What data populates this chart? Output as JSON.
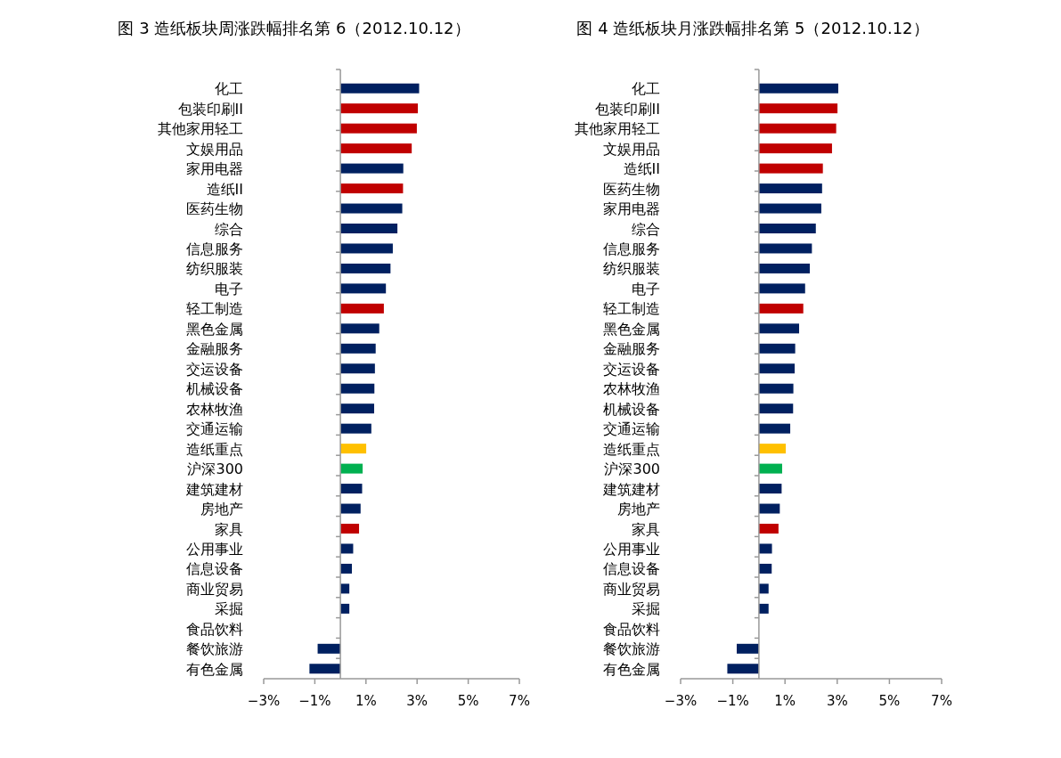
{
  "chart_data": [
    {
      "type": "bar",
      "orientation": "horizontal",
      "title": "图 3 造纸板块周涨跌幅排名第 6（2012.10.12）",
      "categories": [
        "化工",
        "包装印刷II",
        "其他家用轻工",
        "文娱用品",
        "家用电器",
        "造纸II",
        "医药生物",
        "综合",
        "信息服务",
        "纺织服装",
        "电子",
        "轻工制造",
        "黑色金属",
        "金融服务",
        "交运设备",
        "机械设备",
        "农林牧渔",
        "交通运输",
        "造纸重点",
        "沪深300",
        "建筑建材",
        "房地产",
        "家具",
        "公用事业",
        "信息设备",
        "商业贸易",
        "采掘",
        "食品饮料",
        "餐饮旅游",
        "有色金属"
      ],
      "values": [
        3.08,
        3.03,
        2.99,
        2.79,
        2.46,
        2.45,
        2.42,
        2.23,
        2.05,
        1.96,
        1.78,
        1.7,
        1.52,
        1.38,
        1.35,
        1.33,
        1.32,
        1.21,
        1.01,
        0.87,
        0.85,
        0.79,
        0.73,
        0.5,
        0.45,
        0.35,
        0.35,
        0,
        -0.89,
        -1.21
      ],
      "colors": [
        "#002060",
        "#c00000",
        "#c00000",
        "#c00000",
        "#002060",
        "#c00000",
        "#002060",
        "#002060",
        "#002060",
        "#002060",
        "#002060",
        "#c00000",
        "#002060",
        "#002060",
        "#002060",
        "#002060",
        "#002060",
        "#002060",
        "#ffc000",
        "#00b050",
        "#002060",
        "#002060",
        "#c00000",
        "#002060",
        "#002060",
        "#002060",
        "#002060",
        "#002060",
        "#002060",
        "#002060"
      ],
      "xlim": [
        -3,
        7
      ],
      "xticks": [
        {
          "value": -3,
          "label": "−3%"
        },
        {
          "value": -1,
          "label": "−1%"
        },
        {
          "value": 1,
          "label": "1%"
        },
        {
          "value": 3,
          "label": "3%"
        },
        {
          "value": 5,
          "label": "5%"
        },
        {
          "value": 7,
          "label": "7%"
        }
      ]
    },
    {
      "type": "bar",
      "orientation": "horizontal",
      "title": "图 4 造纸板块月涨跌幅排名第 5（2012.10.12）",
      "categories": [
        "化工",
        "包装印刷II",
        "其他家用轻工",
        "文娱用品",
        "造纸II",
        "医药生物",
        "家用电器",
        "综合",
        "信息服务",
        "纺织服装",
        "电子",
        "轻工制造",
        "黑色金属",
        "金融服务",
        "交运设备",
        "农林牧渔",
        "机械设备",
        "交通运输",
        "造纸重点",
        "沪深300",
        "建筑建材",
        "房地产",
        "家具",
        "公用事业",
        "信息设备",
        "商业贸易",
        "采掘",
        "食品饮料",
        "餐饮旅游",
        "有色金属"
      ],
      "values": [
        3.04,
        3.01,
        2.96,
        2.8,
        2.45,
        2.42,
        2.39,
        2.18,
        2.03,
        1.95,
        1.77,
        1.7,
        1.54,
        1.39,
        1.37,
        1.32,
        1.31,
        1.2,
        1.03,
        0.89,
        0.87,
        0.8,
        0.75,
        0.5,
        0.49,
        0.37,
        0.37,
        0,
        -0.85,
        -1.21
      ],
      "colors": [
        "#002060",
        "#c00000",
        "#c00000",
        "#c00000",
        "#c00000",
        "#002060",
        "#002060",
        "#002060",
        "#002060",
        "#002060",
        "#002060",
        "#c00000",
        "#002060",
        "#002060",
        "#002060",
        "#002060",
        "#002060",
        "#002060",
        "#ffc000",
        "#00b050",
        "#002060",
        "#002060",
        "#c00000",
        "#002060",
        "#002060",
        "#002060",
        "#002060",
        "#002060",
        "#002060",
        "#002060"
      ],
      "xlim": [
        -3,
        7
      ],
      "xticks": [
        {
          "value": -3,
          "label": "−3%"
        },
        {
          "value": -1,
          "label": "−1%"
        },
        {
          "value": 1,
          "label": "1%"
        },
        {
          "value": 3,
          "label": "3%"
        },
        {
          "value": 5,
          "label": "5%"
        },
        {
          "value": 7,
          "label": "7%"
        }
      ]
    }
  ]
}
